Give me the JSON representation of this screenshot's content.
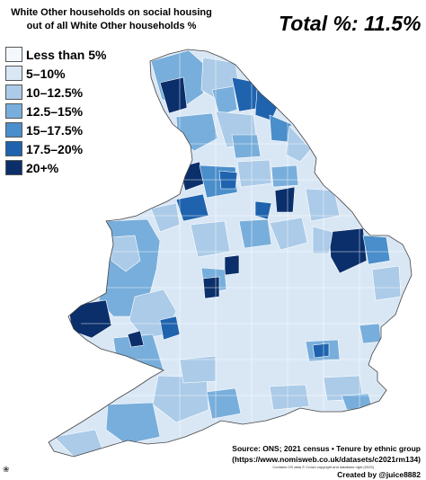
{
  "title_line1": "White Other households on social housing",
  "title_line2": "out of all White Other households %",
  "total_text": "Total %: 11.5%",
  "legend": [
    {
      "label": "Less than 5%",
      "color": "#f4f8fd"
    },
    {
      "label": "5–10%",
      "color": "#d9e7f5"
    },
    {
      "label": "10–12.5%",
      "color": "#abcbe8"
    },
    {
      "label": "12.5–15%",
      "color": "#78aedb"
    },
    {
      "label": "15–17.5%",
      "color": "#4a8ecb"
    },
    {
      "label": "17.5–20%",
      "color": "#1f63ae"
    },
    {
      "label": "20+%",
      "color": "#0b2f6b"
    }
  ],
  "source_line1": "Source: ONS; 2021 census  • Tenure by ethnic group",
  "source_line2": "(https://www.nomisweb.co.uk/datasets/c2021rm134)",
  "copyright_text": "Contains OS data © Crown copyright and database right (2023)",
  "credit_text": "Created by @juice8882",
  "map_subject": "England and Wales local authorities choropleth"
}
